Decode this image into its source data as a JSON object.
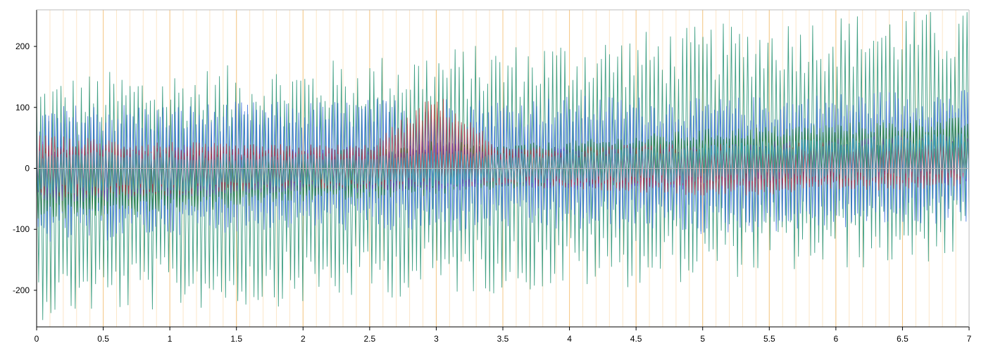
{
  "colors": {
    "background": "#ffffff",
    "axis": "#000000",
    "major_grid": "#f5c98a",
    "minor_grid": "#fbe6c8",
    "zero_line": "#b9b9b9",
    "series_palette": [
      "#1f8f6f",
      "#2a63d8",
      "#1f7a1f",
      "#6b3fc8",
      "#c23a3a",
      "#2fb0c8"
    ]
  },
  "chart_data": {
    "type": "line",
    "title": "",
    "xlabel": "",
    "ylabel": "",
    "xlim": [
      0,
      7
    ],
    "ylim": [
      -260,
      260
    ],
    "x_ticks": [
      {
        "value": 0,
        "label": "0"
      },
      {
        "value": 0.5,
        "label": "0.5"
      },
      {
        "value": 1,
        "label": "1"
      },
      {
        "value": 1.5,
        "label": "1.5"
      },
      {
        "value": 2,
        "label": "2"
      },
      {
        "value": 2.5,
        "label": "2.5"
      },
      {
        "value": 3,
        "label": "3"
      },
      {
        "value": 3.5,
        "label": "3.5"
      },
      {
        "value": 4,
        "label": "4"
      },
      {
        "value": 4.5,
        "label": "4.5"
      },
      {
        "value": 5,
        "label": "5"
      },
      {
        "value": 5.5,
        "label": "5.5"
      },
      {
        "value": 6,
        "label": "6"
      },
      {
        "value": 6.5,
        "label": "6.5"
      },
      {
        "value": 7,
        "label": "7"
      }
    ],
    "y_ticks": [
      {
        "value": 200,
        "label": "200"
      },
      {
        "value": 100,
        "label": "100"
      },
      {
        "value": 0,
        "label": "0"
      },
      {
        "value": -100,
        "label": "-100"
      },
      {
        "value": -200,
        "label": "-200"
      }
    ],
    "minor_x_step": 0.1,
    "grid": true,
    "legend": "none",
    "series": [
      {
        "color": "#1f8f6f",
        "x": [
          0,
          0.5,
          1,
          1.5,
          2,
          2.5,
          3,
          3.5,
          4,
          4.5,
          5,
          5.5,
          6,
          6.5,
          7
        ],
        "upper": [
          150,
          160,
          165,
          170,
          175,
          185,
          200,
          205,
          215,
          225,
          235,
          245,
          255,
          260,
          260
        ],
        "lower": [
          -250,
          -240,
          -235,
          -230,
          -225,
          -215,
          -210,
          -205,
          -200,
          -195,
          -185,
          -175,
          -170,
          -160,
          -150
        ]
      },
      {
        "color": "#2a63d8",
        "x": [
          0,
          0.5,
          1,
          1.5,
          2,
          2.5,
          3,
          3.5,
          4,
          4.5,
          5,
          5.5,
          6,
          6.5,
          7
        ],
        "upper": [
          100,
          110,
          105,
          110,
          110,
          115,
          120,
          115,
          120,
          120,
          115,
          120,
          125,
          130,
          130
        ],
        "lower": [
          -125,
          -120,
          -110,
          -105,
          -100,
          -105,
          -110,
          -100,
          -105,
          -100,
          -110,
          -105,
          -100,
          -95,
          -90
        ]
      },
      {
        "color": "#1f7a1f",
        "x": [
          0,
          0.5,
          1,
          1.5,
          2,
          2.5,
          3,
          3.5,
          4,
          4.5,
          5,
          5.5,
          6,
          6.5,
          7
        ],
        "upper": [
          40,
          35,
          35,
          30,
          30,
          35,
          45,
          40,
          45,
          55,
          65,
          70,
          75,
          80,
          85
        ],
        "lower": [
          -90,
          -80,
          -75,
          -65,
          -55,
          -50,
          -45,
          -35,
          -30,
          -30,
          -30,
          -25,
          -20,
          -20,
          -20
        ]
      },
      {
        "color": "#6b3fc8",
        "x": [
          0,
          0.5,
          1,
          1.5,
          2,
          2.5,
          3,
          3.5,
          4,
          4.5,
          5,
          5.5,
          6,
          6.5,
          7
        ],
        "upper": [
          45,
          40,
          40,
          35,
          35,
          35,
          50,
          35,
          35,
          40,
          40,
          45,
          50,
          55,
          60
        ],
        "lower": [
          -60,
          -55,
          -50,
          -45,
          -40,
          -40,
          -40,
          -35,
          -35,
          -35,
          -35,
          -30,
          -25,
          -25,
          -25
        ]
      },
      {
        "color": "#c23a3a",
        "x": [
          0,
          0.5,
          1,
          1.5,
          2,
          2.5,
          3,
          3.5,
          4,
          4.5,
          5,
          5.5,
          6,
          6.5,
          7
        ],
        "upper": [
          55,
          50,
          45,
          40,
          40,
          40,
          125,
          35,
          35,
          40,
          40,
          40,
          45,
          45,
          50
        ],
        "lower": [
          -50,
          -45,
          -45,
          -40,
          -35,
          -35,
          -30,
          -30,
          -35,
          -40,
          -45,
          -45,
          -40,
          -35,
          -30
        ]
      },
      {
        "color": "#2fb0c8",
        "x": [
          0,
          0.5,
          1,
          1.5,
          2,
          2.5,
          3,
          3.5,
          4,
          4.5,
          5,
          5.5,
          6,
          6.5,
          7
        ],
        "upper": [
          30,
          30,
          30,
          25,
          25,
          25,
          35,
          25,
          30,
          35,
          40,
          45,
          50,
          55,
          60
        ],
        "lower": [
          -45,
          -40,
          -40,
          -35,
          -30,
          -30,
          -30,
          -25,
          -25,
          -25,
          -25,
          -20,
          -20,
          -20,
          -20
        ]
      }
    ]
  }
}
